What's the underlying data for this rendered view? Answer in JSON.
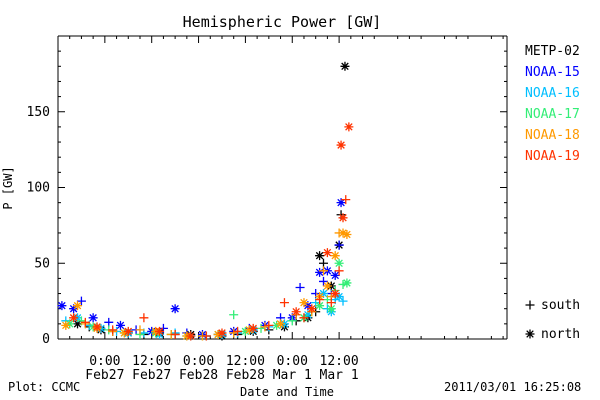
{
  "chart_data": {
    "type": "scatter",
    "title": "Hemispheric Power [GW]",
    "xlabel": "Date and Time",
    "ylabel": "P [GW]",
    "x_unit": "hours",
    "x_range": [
      -12,
      103
    ],
    "ylim": [
      0,
      200
    ],
    "y_ticks": [
      0,
      50,
      100,
      150
    ],
    "x_ticks": [
      {
        "x": 0,
        "top": "0:00",
        "bottom": "Feb27"
      },
      {
        "x": 12,
        "top": "12:00",
        "bottom": "Feb27"
      },
      {
        "x": 24,
        "top": "0:00",
        "bottom": "Feb28"
      },
      {
        "x": 36,
        "top": "12:00",
        "bottom": "Feb28"
      },
      {
        "x": 48,
        "top": "0:00",
        "bottom": "Mar 1"
      },
      {
        "x": 60,
        "top": "12:00",
        "bottom": "Mar 1"
      }
    ],
    "grid": false,
    "legend_position": "right",
    "markers": {
      "south": "+",
      "north": "*"
    },
    "marker_legend": [
      {
        "symbol": "+",
        "label": "south"
      },
      {
        "symbol": "*",
        "label": "north"
      }
    ],
    "series": [
      {
        "name": "METP-02",
        "color": "#000000",
        "points": [
          [
            -7,
            10,
            "*"
          ],
          [
            -4,
            8,
            "+"
          ],
          [
            -1,
            6,
            "*"
          ],
          [
            2,
            5,
            "+"
          ],
          [
            6,
            4,
            "*"
          ],
          [
            10,
            3,
            "+"
          ],
          [
            14,
            4,
            "*"
          ],
          [
            18,
            3,
            "+"
          ],
          [
            22,
            3,
            "*"
          ],
          [
            26,
            2,
            "+"
          ],
          [
            30,
            2,
            "*"
          ],
          [
            34,
            3,
            "+"
          ],
          [
            38,
            5,
            "*"
          ],
          [
            42,
            6,
            "+"
          ],
          [
            46,
            8,
            "*"
          ],
          [
            49,
            12,
            "+"
          ],
          [
            52,
            14,
            "*"
          ],
          [
            54,
            18,
            "+"
          ],
          [
            55,
            55,
            "*"
          ],
          [
            56,
            50,
            "+"
          ],
          [
            58,
            35,
            "*"
          ],
          [
            59,
            28,
            "+"
          ],
          [
            60,
            62,
            "*"
          ],
          [
            60.5,
            82,
            "+"
          ],
          [
            61.5,
            180,
            "*"
          ]
        ]
      },
      {
        "name": "NOAA-15",
        "color": "#0000ff",
        "points": [
          [
            -11,
            22,
            "*"
          ],
          [
            -8,
            20,
            "*"
          ],
          [
            -6,
            25,
            "+"
          ],
          [
            -3,
            14,
            "*"
          ],
          [
            1,
            11,
            "+"
          ],
          [
            4,
            9,
            "*"
          ],
          [
            8,
            6,
            "+"
          ],
          [
            12,
            5,
            "*"
          ],
          [
            15,
            7,
            "+"
          ],
          [
            18,
            20,
            "*"
          ],
          [
            21,
            4,
            "+"
          ],
          [
            25,
            3,
            "*"
          ],
          [
            29,
            3,
            "+"
          ],
          [
            33,
            5,
            "*"
          ],
          [
            37,
            7,
            "+"
          ],
          [
            41,
            9,
            "*"
          ],
          [
            45,
            14,
            "+"
          ],
          [
            48,
            14,
            "*"
          ],
          [
            50,
            34,
            "+"
          ],
          [
            52,
            22,
            "*"
          ],
          [
            54,
            30,
            "+"
          ],
          [
            55,
            44,
            "*"
          ],
          [
            56,
            38,
            "+"
          ],
          [
            57,
            45,
            "*"
          ],
          [
            58,
            30,
            "+"
          ],
          [
            59,
            42,
            "*"
          ],
          [
            60,
            62,
            "+"
          ],
          [
            60.5,
            90,
            "*"
          ]
        ]
      },
      {
        "name": "NOAA-16",
        "color": "#00bfff",
        "points": [
          [
            -10,
            12,
            "+"
          ],
          [
            -7,
            14,
            "*"
          ],
          [
            -4,
            9,
            "+"
          ],
          [
            -1,
            7,
            "*"
          ],
          [
            3,
            5,
            "+"
          ],
          [
            6,
            4,
            "*"
          ],
          [
            10,
            4,
            "+"
          ],
          [
            14,
            3,
            "*"
          ],
          [
            18,
            4,
            "+"
          ],
          [
            22,
            2,
            "*"
          ],
          [
            26,
            2,
            "+"
          ],
          [
            30,
            3,
            "*"
          ],
          [
            34,
            4,
            "+"
          ],
          [
            38,
            6,
            "*"
          ],
          [
            42,
            8,
            "+"
          ],
          [
            46,
            10,
            "*"
          ],
          [
            49,
            16,
            "+"
          ],
          [
            52,
            16,
            "*"
          ],
          [
            54,
            24,
            "+"
          ],
          [
            56,
            30,
            "*"
          ],
          [
            57,
            20,
            "+"
          ],
          [
            58,
            18,
            "*"
          ],
          [
            59,
            26,
            "+"
          ],
          [
            60,
            28,
            "*"
          ],
          [
            61,
            25,
            "+"
          ]
        ]
      },
      {
        "name": "NOAA-17",
        "color": "#33ee77",
        "points": [
          [
            -9,
            10,
            "*"
          ],
          [
            -6,
            12,
            "+"
          ],
          [
            -3,
            8,
            "*"
          ],
          [
            1,
            6,
            "+"
          ],
          [
            5,
            4,
            "*"
          ],
          [
            9,
            3,
            "+"
          ],
          [
            13,
            4,
            "*"
          ],
          [
            17,
            3,
            "+"
          ],
          [
            21,
            2,
            "*"
          ],
          [
            25,
            2,
            "+"
          ],
          [
            29,
            3,
            "*"
          ],
          [
            33,
            16,
            "+"
          ],
          [
            36,
            5,
            "*"
          ],
          [
            40,
            7,
            "+"
          ],
          [
            44,
            9,
            "*"
          ],
          [
            48,
            12,
            "+"
          ],
          [
            51,
            14,
            "*"
          ],
          [
            53,
            18,
            "+"
          ],
          [
            55,
            22,
            "*"
          ],
          [
            57,
            26,
            "+"
          ],
          [
            58,
            20,
            "*"
          ],
          [
            59,
            32,
            "+"
          ],
          [
            60,
            50,
            "*"
          ],
          [
            61,
            36,
            "+"
          ],
          [
            62,
            37,
            "*"
          ]
        ]
      },
      {
        "name": "NOAA-18",
        "color": "#ff9900",
        "points": [
          [
            -10,
            9,
            "*"
          ],
          [
            -7,
            22,
            "*"
          ],
          [
            -5,
            10,
            "+"
          ],
          [
            -2,
            7,
            "*"
          ],
          [
            2,
            5,
            "+"
          ],
          [
            5,
            4,
            "*"
          ],
          [
            9,
            6,
            "+"
          ],
          [
            13,
            5,
            "*"
          ],
          [
            17,
            3,
            "+"
          ],
          [
            21,
            2,
            "*"
          ],
          [
            25,
            2,
            "+"
          ],
          [
            29,
            3,
            "*"
          ],
          [
            33,
            4,
            "+"
          ],
          [
            37,
            6,
            "*"
          ],
          [
            41,
            8,
            "+"
          ],
          [
            45,
            10,
            "*"
          ],
          [
            49,
            16,
            "+"
          ],
          [
            51,
            24,
            "*"
          ],
          [
            53,
            18,
            "+"
          ],
          [
            55,
            28,
            "*"
          ],
          [
            56,
            45,
            "+"
          ],
          [
            57,
            35,
            "*"
          ],
          [
            58,
            28,
            "+"
          ],
          [
            59,
            55,
            "*"
          ],
          [
            60,
            70,
            "+"
          ],
          [
            61,
            70,
            "*"
          ],
          [
            62,
            69,
            "*"
          ]
        ]
      },
      {
        "name": "NOAA-19",
        "color": "#ff3300",
        "points": [
          [
            -8,
            14,
            "*"
          ],
          [
            -5,
            11,
            "+"
          ],
          [
            -2,
            8,
            "*"
          ],
          [
            2,
            6,
            "+"
          ],
          [
            6,
            5,
            "*"
          ],
          [
            10,
            14,
            "+"
          ],
          [
            14,
            5,
            "*"
          ],
          [
            18,
            3,
            "+"
          ],
          [
            22,
            2,
            "*"
          ],
          [
            26,
            2,
            "+"
          ],
          [
            30,
            4,
            "*"
          ],
          [
            34,
            5,
            "+"
          ],
          [
            38,
            7,
            "*"
          ],
          [
            42,
            9,
            "+"
          ],
          [
            46,
            24,
            "+"
          ],
          [
            49,
            18,
            "*"
          ],
          [
            51,
            14,
            "+"
          ],
          [
            53,
            20,
            "*"
          ],
          [
            55,
            26,
            "+"
          ],
          [
            57,
            57,
            "*"
          ],
          [
            58,
            24,
            "+"
          ],
          [
            59,
            30,
            "*"
          ],
          [
            60,
            45,
            "+"
          ],
          [
            60.5,
            128,
            "*"
          ],
          [
            61,
            80,
            "*"
          ],
          [
            61.7,
            92,
            "+"
          ],
          [
            62.5,
            140,
            "*"
          ]
        ]
      }
    ]
  },
  "footer": {
    "plot_credit": "Plot: CCMC",
    "timestamp": "2011/03/01  16:25:08"
  }
}
